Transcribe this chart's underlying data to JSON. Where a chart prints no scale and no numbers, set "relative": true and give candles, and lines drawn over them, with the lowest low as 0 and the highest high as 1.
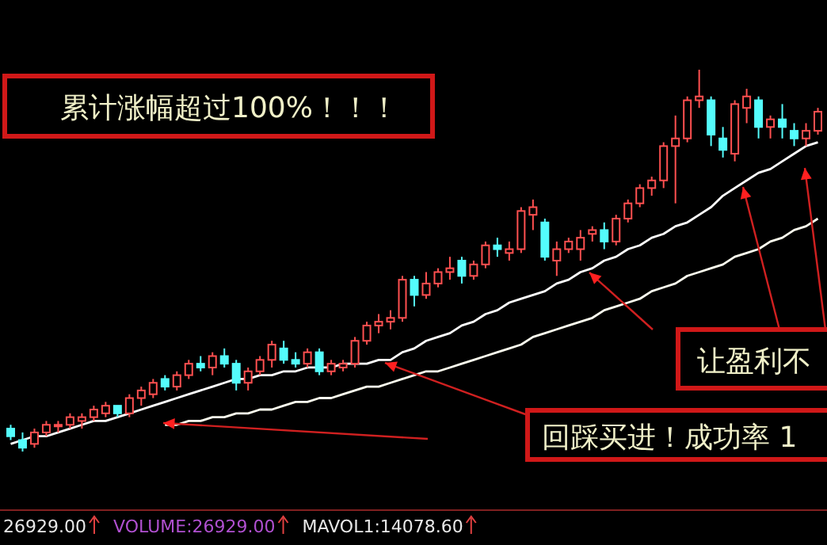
{
  "chart_data": {
    "type": "candlestick",
    "relative": true,
    "categories": [
      null,
      null,
      null,
      null,
      null,
      null,
      null,
      null,
      null,
      null,
      null,
      null,
      null,
      null,
      null,
      null,
      null,
      null,
      null,
      null,
      null,
      null,
      null,
      null,
      null,
      null,
      null,
      null,
      null,
      null,
      null,
      null,
      null,
      null,
      null,
      null,
      null,
      null,
      null,
      null,
      null,
      null,
      null,
      null,
      null,
      null,
      null,
      null,
      null,
      null,
      null,
      null,
      null,
      null,
      null,
      null,
      null,
      null,
      null,
      null,
      null,
      null,
      null,
      null,
      null,
      null,
      null,
      null,
      null
    ],
    "ohlc": [
      [
        0.06,
        0.07,
        0.03,
        0.04
      ],
      [
        0.03,
        0.05,
        0.0,
        0.01
      ],
      [
        0.02,
        0.06,
        0.01,
        0.05
      ],
      [
        0.05,
        0.08,
        0.04,
        0.07
      ],
      [
        0.07,
        0.08,
        0.05,
        0.07
      ],
      [
        0.07,
        0.1,
        0.06,
        0.09
      ],
      [
        0.08,
        0.1,
        0.06,
        0.09
      ],
      [
        0.09,
        0.12,
        0.08,
        0.11
      ],
      [
        0.1,
        0.13,
        0.09,
        0.12
      ],
      [
        0.12,
        0.12,
        0.09,
        0.1
      ],
      [
        0.1,
        0.15,
        0.09,
        0.14
      ],
      [
        0.14,
        0.17,
        0.12,
        0.16
      ],
      [
        0.15,
        0.19,
        0.14,
        0.18
      ],
      [
        0.19,
        0.2,
        0.16,
        0.17
      ],
      [
        0.17,
        0.21,
        0.16,
        0.2
      ],
      [
        0.2,
        0.24,
        0.19,
        0.23
      ],
      [
        0.23,
        0.25,
        0.21,
        0.22
      ],
      [
        0.22,
        0.26,
        0.2,
        0.25
      ],
      [
        0.25,
        0.27,
        0.22,
        0.23
      ],
      [
        0.23,
        0.24,
        0.16,
        0.18
      ],
      [
        0.18,
        0.22,
        0.16,
        0.21
      ],
      [
        0.21,
        0.25,
        0.2,
        0.24
      ],
      [
        0.24,
        0.29,
        0.22,
        0.28
      ],
      [
        0.27,
        0.29,
        0.23,
        0.24
      ],
      [
        0.24,
        0.26,
        0.22,
        0.23
      ],
      [
        0.23,
        0.27,
        0.22,
        0.26
      ],
      [
        0.26,
        0.27,
        0.2,
        0.21
      ],
      [
        0.21,
        0.24,
        0.2,
        0.23
      ],
      [
        0.22,
        0.24,
        0.21,
        0.23
      ],
      [
        0.23,
        0.3,
        0.22,
        0.29
      ],
      [
        0.29,
        0.34,
        0.28,
        0.33
      ],
      [
        0.33,
        0.36,
        0.31,
        0.34
      ],
      [
        0.34,
        0.37,
        0.32,
        0.35
      ],
      [
        0.35,
        0.46,
        0.34,
        0.45
      ],
      [
        0.45,
        0.46,
        0.38,
        0.41
      ],
      [
        0.41,
        0.47,
        0.4,
        0.44
      ],
      [
        0.44,
        0.48,
        0.43,
        0.47
      ],
      [
        0.47,
        0.51,
        0.45,
        0.48
      ],
      [
        0.5,
        0.51,
        0.44,
        0.46
      ],
      [
        0.46,
        0.5,
        0.45,
        0.49
      ],
      [
        0.49,
        0.55,
        0.48,
        0.54
      ],
      [
        0.54,
        0.56,
        0.51,
        0.53
      ],
      [
        0.52,
        0.55,
        0.5,
        0.53
      ],
      [
        0.53,
        0.64,
        0.52,
        0.63
      ],
      [
        0.62,
        0.66,
        0.58,
        0.64
      ],
      [
        0.6,
        0.61,
        0.5,
        0.51
      ],
      [
        0.5,
        0.55,
        0.46,
        0.53
      ],
      [
        0.53,
        0.56,
        0.52,
        0.55
      ],
      [
        0.53,
        0.58,
        0.5,
        0.56
      ],
      [
        0.57,
        0.59,
        0.55,
        0.58
      ],
      [
        0.58,
        0.6,
        0.53,
        0.55
      ],
      [
        0.55,
        0.62,
        0.54,
        0.61
      ],
      [
        0.61,
        0.66,
        0.6,
        0.65
      ],
      [
        0.65,
        0.7,
        0.64,
        0.69
      ],
      [
        0.69,
        0.72,
        0.67,
        0.71
      ],
      [
        0.71,
        0.81,
        0.69,
        0.8
      ],
      [
        0.8,
        0.88,
        0.65,
        0.82
      ],
      [
        0.82,
        0.93,
        0.81,
        0.92
      ],
      [
        0.92,
        1.0,
        0.9,
        0.93
      ],
      [
        0.92,
        0.93,
        0.8,
        0.83
      ],
      [
        0.82,
        0.85,
        0.77,
        0.79
      ],
      [
        0.78,
        0.92,
        0.76,
        0.91
      ],
      [
        0.9,
        0.95,
        0.86,
        0.93
      ],
      [
        0.92,
        0.93,
        0.82,
        0.85
      ],
      [
        0.85,
        0.88,
        0.82,
        0.87
      ],
      [
        0.87,
        0.91,
        0.82,
        0.85
      ],
      [
        0.84,
        0.86,
        0.8,
        0.82
      ],
      [
        0.82,
        0.86,
        0.8,
        0.84
      ],
      [
        0.84,
        0.9,
        0.83,
        0.89
      ]
    ],
    "colors": [
      "#54fcfc",
      "#54fcfc",
      "#ff5050",
      "#ff5050",
      "#ff5050",
      "#ff5050",
      "#ff5050",
      "#ff5050",
      "#ff5050",
      "#54fcfc",
      "#ff5050",
      "#ff5050",
      "#ff5050",
      "#54fcfc",
      "#ff5050",
      "#ff5050",
      "#54fcfc",
      "#ff5050",
      "#54fcfc",
      "#54fcfc",
      "#ff5050",
      "#ff5050",
      "#ff5050",
      "#54fcfc",
      "#54fcfc",
      "#ff5050",
      "#54fcfc",
      "#ff5050",
      "#ff5050",
      "#ff5050",
      "#ff5050",
      "#ff5050",
      "#ff5050",
      "#ff5050",
      "#54fcfc",
      "#ff5050",
      "#ff5050",
      "#ff5050",
      "#54fcfc",
      "#ff5050",
      "#ff5050",
      "#54fcfc",
      "#ff5050",
      "#ff5050",
      "#ff5050",
      "#54fcfc",
      "#ff5050",
      "#ff5050",
      "#ff5050",
      "#ff5050",
      "#54fcfc",
      "#ff5050",
      "#ff5050",
      "#ff5050",
      "#ff5050",
      "#ff5050",
      "#ff5050",
      "#ff5050",
      "#ff5050",
      "#54fcfc",
      "#54fcfc",
      "#ff5050",
      "#ff5050",
      "#54fcfc",
      "#ff5050",
      "#54fcfc",
      "#54fcfc",
      "#ff5050",
      "#ff5050"
    ],
    "series": [
      {
        "type": "line",
        "color": "#ffffff",
        "values": [
          0.02,
          0.03,
          0.04,
          0.04,
          0.05,
          0.06,
          0.07,
          0.08,
          0.08,
          0.09,
          0.1,
          0.11,
          0.12,
          0.13,
          0.14,
          0.15,
          0.16,
          0.17,
          0.18,
          0.19,
          0.19,
          0.2,
          0.2,
          0.21,
          0.21,
          0.22,
          0.22,
          0.22,
          0.23,
          0.23,
          0.23,
          0.24,
          0.24,
          0.26,
          0.27,
          0.29,
          0.3,
          0.31,
          0.33,
          0.34,
          0.36,
          0.37,
          0.39,
          0.4,
          0.41,
          0.42,
          0.44,
          0.45,
          0.47,
          0.48,
          0.5,
          0.51,
          0.53,
          0.54,
          0.56,
          0.57,
          0.59,
          0.6,
          0.62,
          0.64,
          0.67,
          0.69,
          0.71,
          0.73,
          0.74,
          0.76,
          0.78,
          0.8,
          0.81
        ]
      },
      {
        "type": "line",
        "color": "#fffff0",
        "values": [
          null,
          null,
          null,
          null,
          null,
          null,
          null,
          null,
          null,
          null,
          null,
          null,
          null,
          0.07,
          0.07,
          0.08,
          0.08,
          0.09,
          0.09,
          0.1,
          0.1,
          0.11,
          0.11,
          0.12,
          0.13,
          0.13,
          0.14,
          0.14,
          0.15,
          0.16,
          0.17,
          0.17,
          0.18,
          0.19,
          0.2,
          0.21,
          0.21,
          0.22,
          0.23,
          0.24,
          0.25,
          0.26,
          0.27,
          0.28,
          0.3,
          0.31,
          0.32,
          0.33,
          0.34,
          0.35,
          0.37,
          0.38,
          0.39,
          0.4,
          0.42,
          0.43,
          0.44,
          0.46,
          0.47,
          0.48,
          0.49,
          0.51,
          0.52,
          0.53,
          0.55,
          0.56,
          0.58,
          0.59,
          0.61
        ]
      }
    ],
    "annotations": [
      "累计涨幅超过100%！！！",
      "让盈利不",
      "回踩买进！成功率 1",
      "26929.00",
      "VOLUME:26929.00",
      "MAVOL1:14078.60"
    ]
  }
}
